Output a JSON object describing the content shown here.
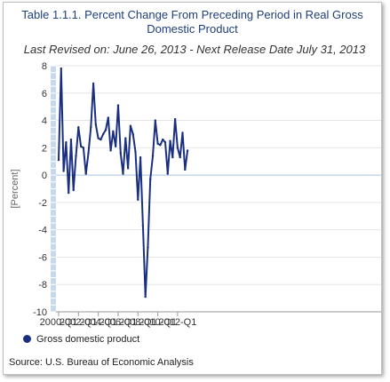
{
  "chart_data": {
    "type": "line",
    "title": "Table 1.1.1. Percent Change From Preceding Period in Real Gross Domestic Product",
    "subtitle": "Last Revised on: June 26, 2013 - Next Release Date July 31, 2013",
    "ylabel": "[Percent]",
    "xlabel": "",
    "ylim": [
      -10,
      8
    ],
    "yticks": [
      8,
      6,
      4,
      2,
      0,
      -2,
      -4,
      -6,
      -8,
      -10
    ],
    "xtick_labels": [
      "2000-Q1",
      "2002-Q1",
      "2004-Q1",
      "2006-Q1",
      "2008-Q1",
      "2010-Q1",
      "2012-Q1"
    ],
    "grid": "horizontal",
    "legend_position": "bottom-left",
    "series": [
      {
        "name": "Gross domestic product",
        "color": "#1b2f80",
        "x": [
          "2000-Q1",
          "2000-Q2",
          "2000-Q3",
          "2000-Q4",
          "2001-Q1",
          "2001-Q2",
          "2001-Q3",
          "2001-Q4",
          "2002-Q1",
          "2002-Q2",
          "2002-Q3",
          "2002-Q4",
          "2003-Q1",
          "2003-Q2",
          "2003-Q3",
          "2003-Q4",
          "2004-Q1",
          "2004-Q2",
          "2004-Q3",
          "2004-Q4",
          "2005-Q1",
          "2005-Q2",
          "2005-Q3",
          "2005-Q4",
          "2006-Q1",
          "2006-Q2",
          "2006-Q3",
          "2006-Q4",
          "2007-Q1",
          "2007-Q2",
          "2007-Q3",
          "2007-Q4",
          "2008-Q1",
          "2008-Q2",
          "2008-Q3",
          "2008-Q4",
          "2009-Q1",
          "2009-Q2",
          "2009-Q3",
          "2009-Q4",
          "2010-Q1",
          "2010-Q2",
          "2010-Q3",
          "2010-Q4",
          "2011-Q1",
          "2011-Q2",
          "2011-Q3",
          "2011-Q4",
          "2012-Q1",
          "2012-Q2",
          "2012-Q3",
          "2012-Q4",
          "2013-Q1"
        ],
        "values": [
          1.1,
          7.8,
          0.3,
          2.4,
          -1.3,
          2.6,
          -1.1,
          1.4,
          3.5,
          2.1,
          2.0,
          0.1,
          1.6,
          3.5,
          6.7,
          3.7,
          2.7,
          2.6,
          3.0,
          3.3,
          4.2,
          1.8,
          3.2,
          2.1,
          5.1,
          1.6,
          0.1,
          2.7,
          0.5,
          3.6,
          3.0,
          1.7,
          -1.8,
          1.3,
          -3.7,
          -8.9,
          -5.3,
          -0.3,
          1.4,
          4.0,
          2.3,
          2.2,
          2.6,
          2.4,
          0.1,
          2.5,
          1.3,
          4.1,
          2.0,
          1.3,
          3.1,
          0.4,
          1.8
        ]
      }
    ]
  },
  "source": "Source: U.S. Bureau of Economic Analysis"
}
